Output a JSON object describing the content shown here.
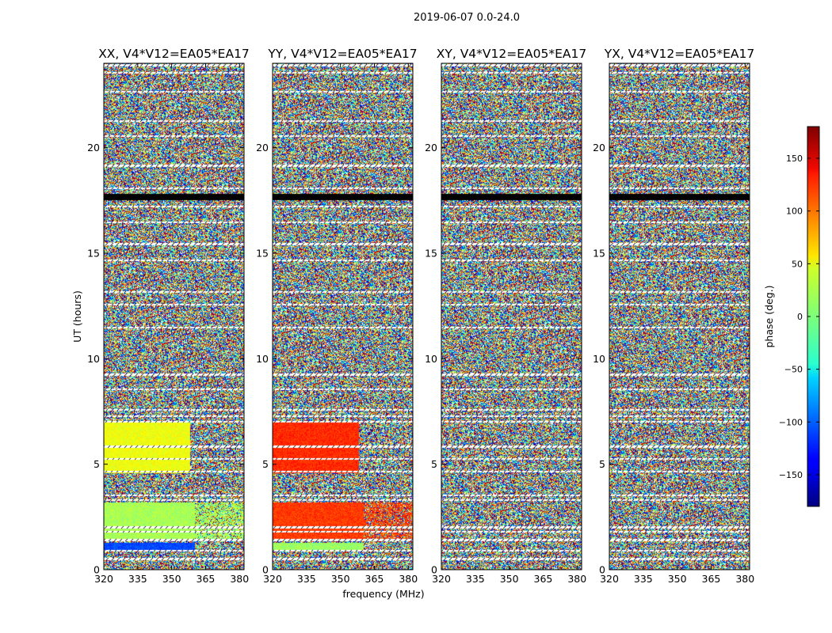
{
  "chart_data": {
    "type": "heatmap",
    "title": "2019-06-07 0.0-24.0",
    "xlabel": "frequency (MHz)",
    "ylabel": "UT (hours)",
    "xlim": [
      320,
      382
    ],
    "ylim": [
      0,
      24
    ],
    "xticks": [
      320,
      335,
      350,
      365,
      380
    ],
    "yticks": [
      0,
      5,
      10,
      15,
      20
    ],
    "colormap": "jet",
    "colorbar": {
      "label": "phase (deg.)",
      "range": [
        -180,
        180
      ],
      "ticks": [
        150,
        100,
        50,
        0,
        -50,
        -100,
        -150
      ],
      "tick_labels": [
        "150",
        "100",
        "50",
        "0",
        "−50",
        "−100",
        "−150"
      ]
    },
    "panels": [
      {
        "title": "XX, V4*V12=EA05*EA17",
        "structured_blocks": [
          {
            "ut": [
              0.95,
              1.3
            ],
            "freq": [
              320,
              360
            ],
            "phase_deg": -110,
            "rest": "noisy"
          },
          {
            "ut": [
              1.5,
              3.2
            ],
            "freq": [
              320,
              360
            ],
            "phase_deg": 15,
            "rest": "noisy-dots"
          },
          {
            "ut": [
              4.6,
              7.0
            ],
            "freq": [
              320,
              358
            ],
            "phase_deg": 40,
            "rest": "noisy"
          }
        ]
      },
      {
        "title": "YY, V4*V12=EA05*EA17",
        "structured_blocks": [
          {
            "ut": [
              0.95,
              1.3
            ],
            "freq": [
              320,
              360
            ],
            "phase_deg": 10,
            "rest": "noisy"
          },
          {
            "ut": [
              1.5,
              3.2
            ],
            "freq": [
              320,
              360
            ],
            "phase_deg": 115,
            "rest": "noisy-dots"
          },
          {
            "ut": [
              4.6,
              7.0
            ],
            "freq": [
              320,
              358
            ],
            "phase_deg": 120,
            "rest": "noisy"
          }
        ]
      },
      {
        "title": "XY, V4*V12=EA05*EA17",
        "structured_blocks": []
      },
      {
        "title": "YX, V4*V12=EA05*EA17",
        "structured_blocks": []
      }
    ],
    "flagged_ut_hours": [
      0.55,
      0.95,
      1.42,
      1.48,
      1.85,
      2.05,
      3.35,
      3.55,
      4.7,
      5.3,
      5.9,
      7.05,
      7.3,
      7.6,
      8.6,
      9.3,
      11.5,
      12.6,
      13.2,
      14.7,
      15.5,
      16.5,
      17.25,
      17.7,
      18.1,
      19.2,
      20.6,
      21.3,
      22.7,
      23.6,
      23.95
    ]
  }
}
